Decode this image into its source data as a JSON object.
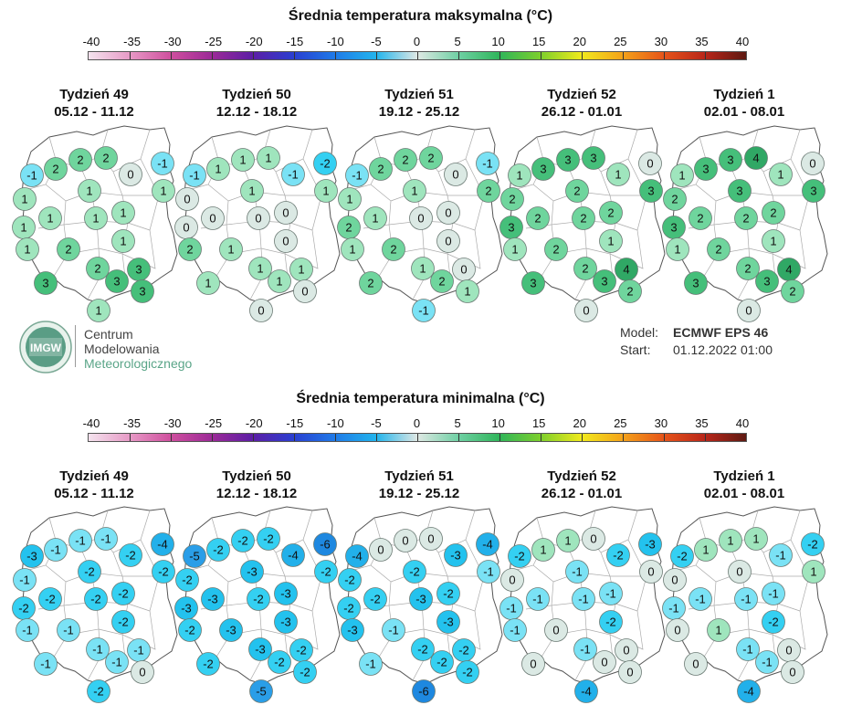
{
  "max_section": {
    "title": "Średnia temperatura maksymalna (°C)",
    "scale_labels": [
      "-40",
      "-35",
      "-30",
      "-25",
      "-20",
      "-15",
      "-10",
      "-5",
      "0",
      "5",
      "10",
      "15",
      "20",
      "25",
      "30",
      "35",
      "40"
    ],
    "maps": [
      {
        "week": "Tydzień 49",
        "dates": "05.12 - 11.12",
        "values": [
          2,
          2,
          2,
          0,
          -1,
          -1,
          1,
          1,
          1,
          1,
          1,
          1,
          1,
          1,
          2,
          1,
          3,
          3,
          2,
          3,
          3,
          1
        ]
      },
      {
        "week": "Tydzień 50",
        "dates": "12.12 - 18.12",
        "values": [
          1,
          1,
          1,
          -1,
          -2,
          -1,
          1,
          0,
          1,
          0,
          0,
          0,
          0,
          2,
          1,
          0,
          1,
          1,
          1,
          1,
          0,
          0
        ]
      },
      {
        "week": "Tydzień 51",
        "dates": "19.12 - 25.12",
        "values": [
          2,
          2,
          2,
          0,
          -1,
          -1,
          2,
          1,
          1,
          2,
          1,
          0,
          0,
          1,
          2,
          0,
          0,
          2,
          1,
          2,
          1,
          -1
        ]
      },
      {
        "week": "Tydzień 52",
        "dates": "26.12 - 01.01",
        "values": [
          3,
          3,
          3,
          1,
          0,
          1,
          3,
          2,
          2,
          3,
          2,
          2,
          2,
          1,
          2,
          1,
          4,
          3,
          2,
          3,
          2,
          0
        ]
      },
      {
        "week": "Tydzień 1",
        "dates": "02.01 - 08.01",
        "values": [
          3,
          3,
          4,
          1,
          0,
          1,
          3,
          2,
          3,
          3,
          2,
          2,
          2,
          1,
          2,
          1,
          4,
          3,
          2,
          3,
          2,
          0
        ]
      }
    ]
  },
  "logo": {
    "badge": "IMGW",
    "line1": "Centrum",
    "line2": "Modelowania",
    "line3": "Meteorologicznego"
  },
  "model_info": {
    "model_label": "Model:",
    "model_value": "ECMWF EPS 46",
    "start_label": "Start:",
    "start_value": "01.12.2022 01:00"
  },
  "min_section": {
    "title": "Średnia temperatura minimalna (°C)",
    "scale_labels": [
      "-40",
      "-35",
      "-30",
      "-25",
      "-20",
      "-15",
      "-10",
      "-5",
      "0",
      "5",
      "10",
      "15",
      "20",
      "25",
      "30",
      "35",
      "40"
    ],
    "maps": [
      {
        "week": "Tydzień 49",
        "dates": "05.12 - 11.12",
        "values": [
          -1,
          -1,
          -1,
          -2,
          -4,
          -3,
          -2,
          -1,
          -2,
          -2,
          -2,
          -2,
          -2,
          -1,
          -1,
          -2,
          -1,
          -1,
          -1,
          -1,
          0,
          -2
        ]
      },
      {
        "week": "Tydzień 50",
        "dates": "12.12 - 18.12",
        "values": [
          -2,
          -2,
          -2,
          -4,
          -6,
          -5,
          -2,
          -2,
          -3,
          -3,
          -3,
          -2,
          -3,
          -2,
          -3,
          -3,
          -2,
          -2,
          -3,
          -2,
          -2,
          -5
        ]
      },
      {
        "week": "Tydzień 51",
        "dates": "19.12 - 25.12",
        "values": [
          0,
          0,
          0,
          -3,
          -4,
          -4,
          -1,
          -2,
          -2,
          -2,
          -2,
          -3,
          -2,
          -3,
          -1,
          -3,
          -2,
          -1,
          -2,
          -2,
          -2,
          -6
        ]
      },
      {
        "week": "Tydzień 52",
        "dates": "26.12 - 01.01",
        "values": [
          1,
          1,
          0,
          -2,
          -3,
          -2,
          0,
          0,
          -1,
          -1,
          -1,
          -1,
          -1,
          -1,
          0,
          -2,
          0,
          0,
          -1,
          0,
          0,
          -4
        ]
      },
      {
        "week": "Tydzień 1",
        "dates": "02.01 - 08.01",
        "values": [
          1,
          1,
          1,
          -1,
          -2,
          -2,
          1,
          0,
          0,
          -1,
          -1,
          -1,
          -1,
          0,
          1,
          -2,
          0,
          0,
          -1,
          -1,
          0,
          -4
        ]
      }
    ]
  },
  "colors": {
    "text": "#111111",
    "border": "#333333",
    "map_outline": "#555555"
  }
}
